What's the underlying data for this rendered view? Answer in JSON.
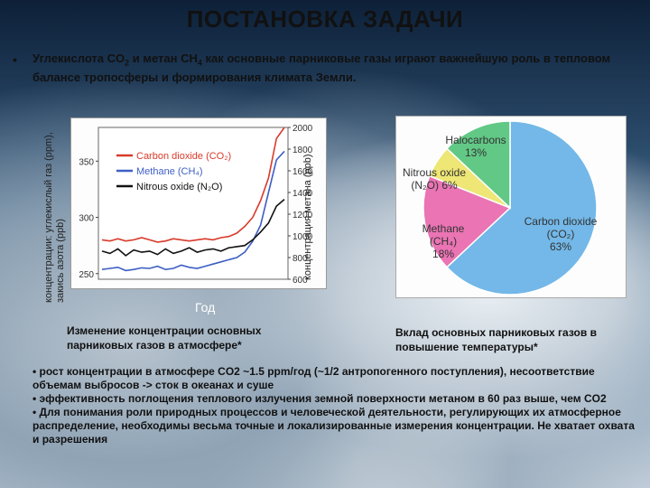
{
  "title": "ПОСТАНОВКА ЗАДАЧИ",
  "intro": {
    "bullet": "•",
    "part1": "Углекислота CO",
    "sub1": "2",
    "part2": " и метан CH",
    "sub2": "4",
    "part3": " как основные парниковые газы играют важнейшую роль в тепловом балансе тропосферы и формирования климата Земли."
  },
  "line_panel": {
    "ylabel_left": "концентрации: углекислый газ (ppm), закись азота (ppb)",
    "ylabel_right": "концентрация метана (ppb)",
    "xlabel": "Год",
    "caption": "Изменение концентрации основных парниковых газов в атмосфере*"
  },
  "pie_panel": {
    "caption": "Вклад основных парниковых газов в повышение температуры*"
  },
  "chart_data": [
    {
      "type": "line",
      "y_left_ticks": [
        250,
        300,
        350
      ],
      "y_right_ticks": [
        600,
        800,
        1000,
        1200,
        1400,
        1600,
        1800,
        2000
      ],
      "legend": [
        {
          "label": "Carbon dioxide",
          "formula": "(CO₂)",
          "color": "#d83a2a"
        },
        {
          "label": "Methane",
          "formula": "(CH₄)",
          "color": "#3d5fc4"
        },
        {
          "label": "Nitrous oxide",
          "formula": "(N₂O)",
          "color": "#111111"
        }
      ],
      "series": [
        {
          "name": "Carbon dioxide",
          "color": "#d83a2a",
          "values": [
            280,
            279,
            281,
            279,
            280,
            282,
            280,
            278,
            279,
            281,
            280,
            279,
            280,
            281,
            280,
            282,
            283,
            286,
            292,
            300,
            315,
            335,
            370,
            380
          ]
        },
        {
          "name": "Methane",
          "color": "#3d5fc4",
          "values": [
            690,
            700,
            710,
            680,
            690,
            705,
            700,
            720,
            690,
            700,
            730,
            710,
            700,
            720,
            740,
            760,
            780,
            800,
            850,
            950,
            1100,
            1400,
            1700,
            1780
          ]
        },
        {
          "name": "Nitrous oxide",
          "color": "#111111",
          "values": [
            270,
            268,
            272,
            266,
            271,
            269,
            270,
            267,
            272,
            268,
            270,
            273,
            269,
            271,
            272,
            270,
            273,
            274,
            275,
            280,
            287,
            295,
            310,
            316
          ]
        }
      ]
    },
    {
      "type": "pie",
      "slices": [
        {
          "label": "Carbon dioxide",
          "formula": "(CO₂)",
          "percent": 63,
          "value_text": "63%",
          "color": "#73b8e8"
        },
        {
          "label": "Methane",
          "formula": "(CH₄)",
          "percent": 18,
          "value_text": "18%",
          "color": "#ea74b4"
        },
        {
          "label": "Nitrous oxide",
          "formula": "(N₂O)",
          "percent": 6,
          "value_text": "6%",
          "color": "#eee675"
        },
        {
          "label": "Halocarbons",
          "formula": "",
          "percent": 13,
          "value_text": "13%",
          "color": "#62c886"
        }
      ]
    }
  ],
  "bullets": [
    "• рост концентрации в атмосфере CO2 ~1.5 ppm/год (~1/2 антропогенного поступления), несоответствие объемам выбросов -> сток в океанах и суше",
    "• эффективность поглощения теплового излучения земной поверхности метаном в 60 раз выше, чем CO2",
    "• Для понимания роли природных процессов и человеческой деятельности, регулирующих их атмосферное распределение, необходимы весьма точные и локализированные измерения концентрации. Не хватает охвата и разрешения"
  ]
}
